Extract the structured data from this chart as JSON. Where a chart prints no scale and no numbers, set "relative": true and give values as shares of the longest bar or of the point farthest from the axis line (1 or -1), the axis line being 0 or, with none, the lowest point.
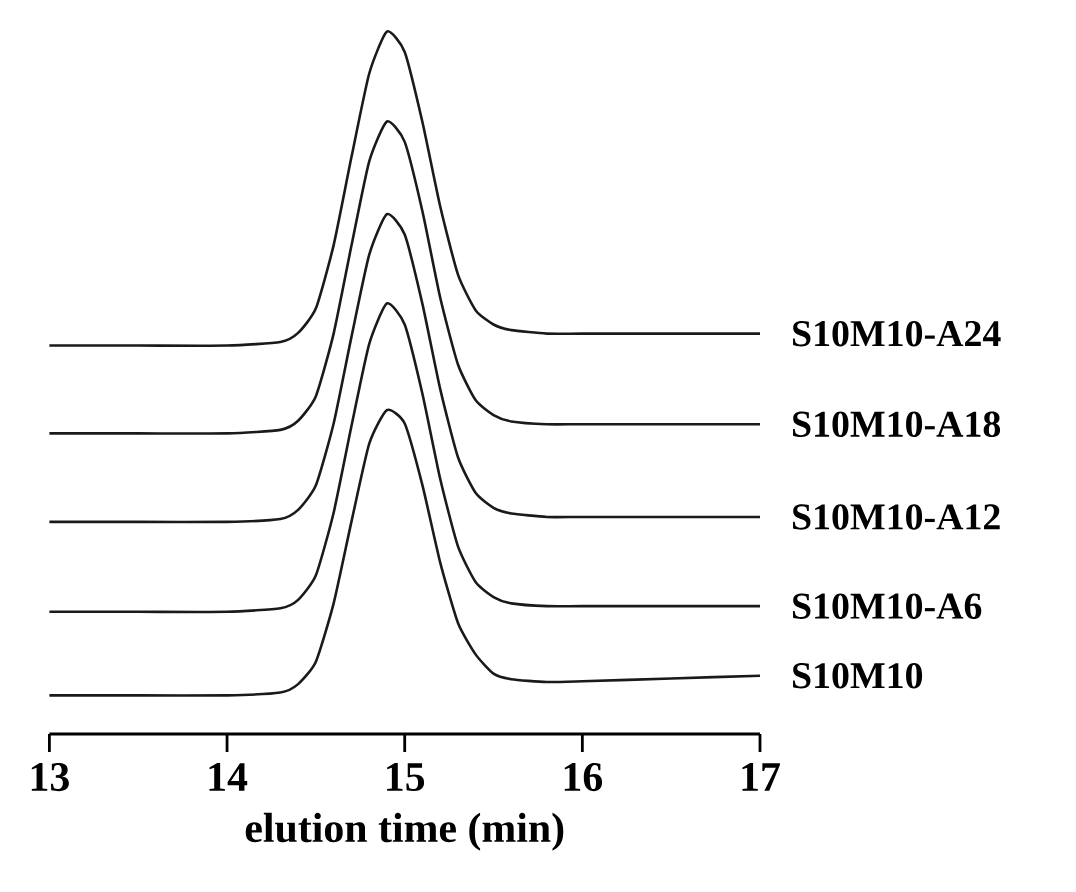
{
  "chart_data": {
    "type": "line",
    "relative": true,
    "xlabel": "elution time (min)",
    "xlim": [
      13,
      17
    ],
    "xticks": [
      13,
      14,
      15,
      16,
      17
    ],
    "x": [
      13.0,
      13.5,
      14.0,
      14.3,
      14.4,
      14.5,
      14.6,
      14.7,
      14.8,
      14.9,
      15.0,
      15.1,
      15.2,
      15.3,
      15.4,
      15.5,
      15.6,
      15.8,
      16.0,
      16.5,
      17.0
    ],
    "series": [
      {
        "name": "S10M10",
        "color": "#1a1a1a",
        "values": [
          0.055,
          0.055,
          0.055,
          0.059,
          0.071,
          0.103,
          0.186,
          0.302,
          0.413,
          0.461,
          0.442,
          0.354,
          0.244,
          0.158,
          0.113,
          0.086,
          0.078,
          0.074,
          0.075,
          0.079,
          0.083
        ]
      },
      {
        "name": "S10M10-A6",
        "color": "#1a1a1a",
        "values": [
          0.174,
          0.174,
          0.174,
          0.179,
          0.191,
          0.226,
          0.315,
          0.438,
          0.555,
          0.613,
          0.583,
          0.484,
          0.363,
          0.267,
          0.216,
          0.195,
          0.186,
          0.182,
          0.182,
          0.182,
          0.182
        ]
      },
      {
        "name": "S10M10-A12",
        "color": "#1a1a1a",
        "values": [
          0.302,
          0.302,
          0.302,
          0.306,
          0.319,
          0.354,
          0.442,
          0.565,
          0.682,
          0.74,
          0.711,
          0.612,
          0.491,
          0.394,
          0.343,
          0.322,
          0.314,
          0.309,
          0.309,
          0.309,
          0.309
        ]
      },
      {
        "name": "S10M10-A18",
        "color": "#1a1a1a",
        "values": [
          0.428,
          0.428,
          0.428,
          0.433,
          0.446,
          0.481,
          0.57,
          0.695,
          0.815,
          0.872,
          0.843,
          0.744,
          0.621,
          0.526,
          0.475,
          0.454,
          0.445,
          0.441,
          0.441,
          0.441,
          0.441
        ]
      },
      {
        "name": "S10M10-A24",
        "color": "#1a1a1a",
        "values": [
          0.553,
          0.553,
          0.553,
          0.558,
          0.571,
          0.606,
          0.696,
          0.821,
          0.94,
          1.0,
          0.971,
          0.871,
          0.751,
          0.654,
          0.603,
          0.583,
          0.575,
          0.57,
          0.57,
          0.57,
          0.57
        ]
      }
    ]
  }
}
